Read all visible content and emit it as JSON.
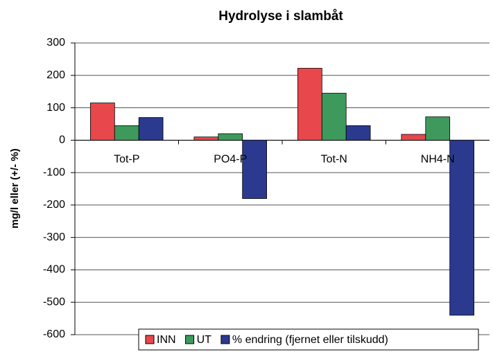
{
  "chart_data": {
    "type": "bar",
    "title": "Hydrolyse i slambåt",
    "y_label": "mg/l eller (+/- %)",
    "categories": [
      "Tot-P",
      "PO4-P",
      "Tot-N",
      "NH4-N"
    ],
    "series": [
      {
        "name": "INN",
        "color": "#e8474c",
        "values": [
          115,
          10,
          222,
          18
        ]
      },
      {
        "name": "UT",
        "color": "#3d9a5c",
        "values": [
          45,
          20,
          145,
          72
        ]
      },
      {
        "name": "% endring (fjernet eller tilskudd)",
        "color": "#2b3a8e",
        "values": [
          70,
          -180,
          45,
          -540
        ]
      }
    ],
    "ylim": [
      -600,
      300
    ],
    "yticks": [
      -600,
      -500,
      -400,
      -300,
      -200,
      -100,
      0,
      100,
      200,
      300
    ],
    "grid": true,
    "legend": "bottom"
  }
}
